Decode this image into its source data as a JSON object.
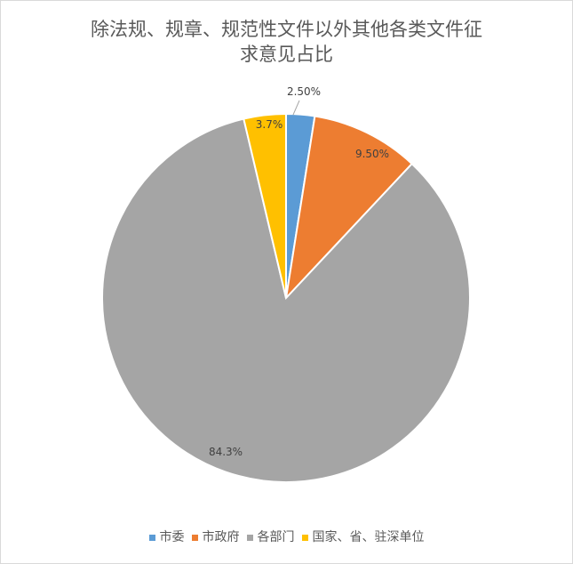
{
  "chart_data": {
    "type": "pie",
    "title_lines": [
      "除法规、规章、规范性文件以外其他各类文件征",
      "求意见占比"
    ],
    "categories": [
      "市委",
      "市政府",
      "各部门",
      "国家、省、驻深单位"
    ],
    "values": [
      2.5,
      9.5,
      84.3,
      3.7
    ],
    "data_labels": [
      "2.50%",
      "9.50%",
      "84.3%",
      "3.7%"
    ],
    "colors": [
      "#5b9bd5",
      "#ed7d31",
      "#a5a5a5",
      "#ffc000"
    ],
    "start_angle": "top (12 o'clock), clockwise",
    "legend_position": "bottom"
  }
}
